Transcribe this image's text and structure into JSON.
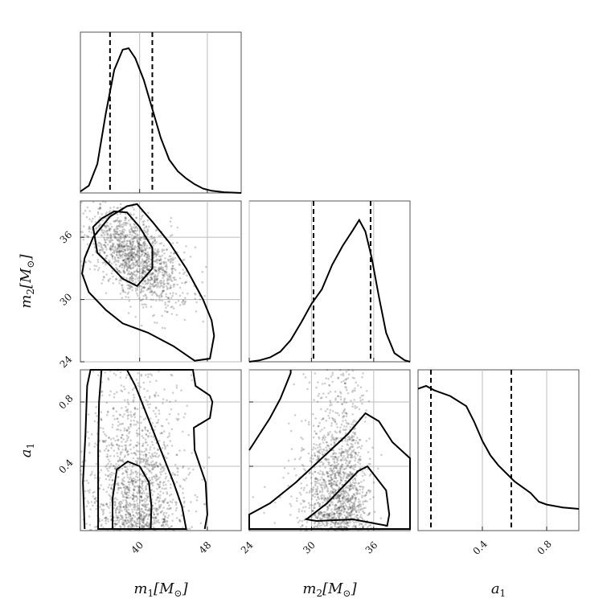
{
  "chart_data": {
    "type": "corner",
    "title": "",
    "parameters": [
      {
        "key": "m1",
        "label_main": "m",
        "label_sub": "1",
        "label_unit": "[M",
        "label_sun": "⊙",
        "label_close": "]",
        "range": [
          33,
          52
        ],
        "ticks": [
          40,
          48
        ],
        "tick_labels": [
          "40",
          "48"
        ]
      },
      {
        "key": "m2",
        "label_main": "m",
        "label_sub": "2",
        "label_unit": "[M",
        "label_sun": "⊙",
        "label_close": "]",
        "range": [
          24,
          39.5
        ],
        "ticks": [
          24,
          30,
          36
        ],
        "tick_labels": [
          "24",
          "30",
          "36"
        ]
      },
      {
        "key": "a1",
        "label_main": "a",
        "label_sub": "1",
        "label_unit": "",
        "label_sun": "",
        "label_close": "",
        "range": [
          0,
          1
        ],
        "ticks": [
          0.4,
          0.8
        ],
        "tick_labels": [
          "0.4",
          "0.8"
        ]
      }
    ],
    "marginals": [
      {
        "param": "m1",
        "credible_interval": [
          36.5,
          41.5
        ],
        "density": [
          [
            33,
            0.01
          ],
          [
            34,
            0.05
          ],
          [
            35,
            0.2
          ],
          [
            36,
            0.55
          ],
          [
            37,
            0.85
          ],
          [
            38,
            0.99
          ],
          [
            38.7,
            1.0
          ],
          [
            39.5,
            0.93
          ],
          [
            40.5,
            0.78
          ],
          [
            41.5,
            0.58
          ],
          [
            42.5,
            0.38
          ],
          [
            43.5,
            0.23
          ],
          [
            44.5,
            0.15
          ],
          [
            45.5,
            0.1
          ],
          [
            46.5,
            0.06
          ],
          [
            47.5,
            0.03
          ],
          [
            48.5,
            0.015
          ],
          [
            50,
            0.005
          ],
          [
            52,
            0.0
          ]
        ]
      },
      {
        "param": "m2",
        "credible_interval": [
          30.2,
          35.7
        ],
        "density": [
          [
            24,
            0.0
          ],
          [
            25,
            0.01
          ],
          [
            26,
            0.03
          ],
          [
            27,
            0.07
          ],
          [
            28,
            0.15
          ],
          [
            29,
            0.27
          ],
          [
            30,
            0.4
          ],
          [
            31,
            0.5
          ],
          [
            32,
            0.67
          ],
          [
            33,
            0.8
          ],
          [
            34,
            0.91
          ],
          [
            34.6,
            0.98
          ],
          [
            35.2,
            0.9
          ],
          [
            35.8,
            0.72
          ],
          [
            36.5,
            0.45
          ],
          [
            37.2,
            0.2
          ],
          [
            38,
            0.06
          ],
          [
            39,
            0.01
          ],
          [
            39.5,
            0.0
          ]
        ]
      },
      {
        "param": "a1",
        "credible_interval": [
          0.08,
          0.58
        ],
        "density": [
          [
            0,
            0.98
          ],
          [
            0.05,
            1.0
          ],
          [
            0.1,
            0.97
          ],
          [
            0.2,
            0.93
          ],
          [
            0.3,
            0.86
          ],
          [
            0.35,
            0.75
          ],
          [
            0.4,
            0.62
          ],
          [
            0.45,
            0.52
          ],
          [
            0.5,
            0.45
          ],
          [
            0.6,
            0.34
          ],
          [
            0.7,
            0.26
          ],
          [
            0.75,
            0.2
          ],
          [
            0.8,
            0.18
          ],
          [
            0.9,
            0.16
          ],
          [
            1.0,
            0.15
          ]
        ]
      }
    ],
    "pairs": [
      {
        "x": "m1",
        "y": "m2",
        "inner_contour": [
          [
            34.5,
            37.0
          ],
          [
            35.5,
            37.8
          ],
          [
            37,
            38.5
          ],
          [
            38.5,
            38.4
          ],
          [
            40,
            37.0
          ],
          [
            41.5,
            35.0
          ],
          [
            41.5,
            33.0
          ],
          [
            39.7,
            31.3
          ],
          [
            38,
            32.0
          ],
          [
            36.5,
            33.3
          ],
          [
            35,
            34.5
          ]
        ],
        "outer_contour": [
          [
            33.5,
            34.0
          ],
          [
            34.5,
            36.0
          ],
          [
            36.5,
            38.0
          ],
          [
            38.5,
            39.0
          ],
          [
            39.7,
            39.2
          ],
          [
            41.5,
            37.5
          ],
          [
            43.5,
            35.5
          ],
          [
            45.5,
            33.0
          ],
          [
            47.5,
            30.0
          ],
          [
            48.5,
            28.0
          ],
          [
            48.8,
            26.5
          ],
          [
            48.3,
            24.3
          ],
          [
            46.5,
            24.1
          ],
          [
            44,
            25.5
          ],
          [
            41,
            26.8
          ],
          [
            38,
            27.7
          ],
          [
            36,
            29.0
          ],
          [
            34,
            30.7
          ],
          [
            33.2,
            32.5
          ]
        ]
      },
      {
        "x": "m1",
        "y": "a1",
        "inner_contour": [
          [
            36.8,
            0.01
          ],
          [
            36.8,
            0.2
          ],
          [
            37.3,
            0.38
          ],
          [
            38.6,
            0.43
          ],
          [
            40,
            0.4
          ],
          [
            41.1,
            0.3
          ],
          [
            41.4,
            0.15
          ],
          [
            41.3,
            0.01
          ]
        ],
        "outer_contour": [
          [
            35.1,
            0.01
          ],
          [
            35.1,
            0.5
          ],
          [
            35.2,
            0.8
          ],
          [
            35.5,
            1.0
          ],
          [
            38.5,
            1.0
          ],
          [
            39.5,
            0.9
          ],
          [
            41,
            0.7
          ],
          [
            42.5,
            0.5
          ],
          [
            44,
            0.3
          ],
          [
            45,
            0.15
          ],
          [
            45.5,
            0.01
          ]
        ],
        "outer2_contour": [
          [
            33.5,
            0.01
          ],
          [
            33.3,
            0.3
          ],
          [
            33.6,
            0.6
          ],
          [
            33.8,
            0.9
          ],
          [
            34.2,
            1.0
          ],
          [
            46.3,
            1.0
          ],
          [
            46.6,
            0.9
          ],
          [
            48.3,
            0.84
          ],
          [
            48.6,
            0.8
          ],
          [
            48.3,
            0.7
          ],
          [
            46.4,
            0.64
          ],
          [
            46.5,
            0.5
          ],
          [
            47.8,
            0.3
          ],
          [
            48,
            0.1
          ],
          [
            47.7,
            0.01
          ]
        ]
      },
      {
        "x": "m2",
        "y": "a1",
        "inner_contour": [
          [
            29.5,
            0.07
          ],
          [
            31.5,
            0.17
          ],
          [
            33,
            0.27
          ],
          [
            34.5,
            0.37
          ],
          [
            35.4,
            0.4
          ],
          [
            37.2,
            0.25
          ],
          [
            37.5,
            0.1
          ],
          [
            37.3,
            0.03
          ],
          [
            34,
            0.07
          ],
          [
            30.5,
            0.06
          ]
        ],
        "outer_contour": [
          [
            24,
            0.1
          ],
          [
            26,
            0.17
          ],
          [
            28.5,
            0.3
          ],
          [
            31,
            0.45
          ],
          [
            33.5,
            0.6
          ],
          [
            35.2,
            0.73
          ],
          [
            36.5,
            0.68
          ],
          [
            37.8,
            0.55
          ],
          [
            39.5,
            0.45
          ],
          [
            39.5,
            0.01
          ],
          [
            24,
            0.01
          ]
        ],
        "outer2_contour": [
          [
            24,
            0.5
          ],
          [
            26,
            0.7
          ],
          [
            27,
            0.82
          ],
          [
            27.5,
            0.9
          ],
          [
            28,
            0.98
          ],
          [
            28,
            1.0
          ]
        ]
      }
    ]
  }
}
